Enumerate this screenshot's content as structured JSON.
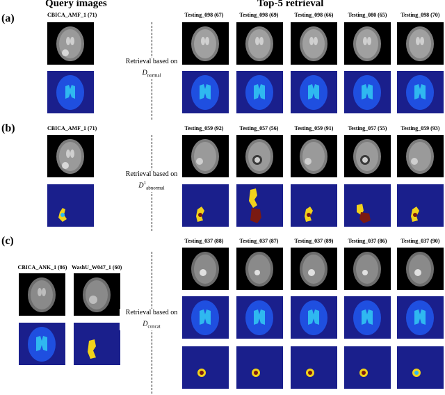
{
  "headers": {
    "query": "Query images",
    "top5": "Top-5 retrieval"
  },
  "rows": [
    {
      "label": "(a)",
      "query_captions": [
        "CBICA_AMF_1 (71)"
      ],
      "retrieval_text": "Retrieval based on",
      "retrieval_symbol": "D",
      "retrieval_sup": "",
      "retrieval_sub": "normal",
      "result_captions": [
        "Testing_098 (67)",
        "Testing_098 (69)",
        "Testing_098 (66)",
        "Testing_080 (65)",
        "Testing_098 (70)"
      ]
    },
    {
      "label": "(b)",
      "query_captions": [
        "CBICA_AMF_1 (71)"
      ],
      "retrieval_text": "Retrieval based on",
      "retrieval_symbol": "D",
      "retrieval_sup": "1",
      "retrieval_sub": "abnormal",
      "result_captions": [
        "Testing_059 (92)",
        "Testing_057 (56)",
        "Testing_059 (91)",
        "Testing_057 (55)",
        "Testing_059 (93)"
      ]
    },
    {
      "label": "(c)",
      "query_captions": [
        "CBICA_ANK_1 (86)",
        "WashU_W047_1 (60)"
      ],
      "retrieval_text": "Retrieval based on",
      "retrieval_symbol": "D",
      "retrieval_sup": "",
      "retrieval_sub": "concat",
      "result_captions": [
        "Testing_037 (88)",
        "Testing_037 (87)",
        "Testing_037 (89)",
        "Testing_037 (86)",
        "Testing_037 (90)"
      ]
    }
  ],
  "colors": {
    "seg_background": "#1a1f8c",
    "brain_outer": "#1f4fe0",
    "ventricles": "#2fb8f0",
    "tumor_core": "#f2d21a",
    "tumor_edema": "#7a1a12"
  }
}
